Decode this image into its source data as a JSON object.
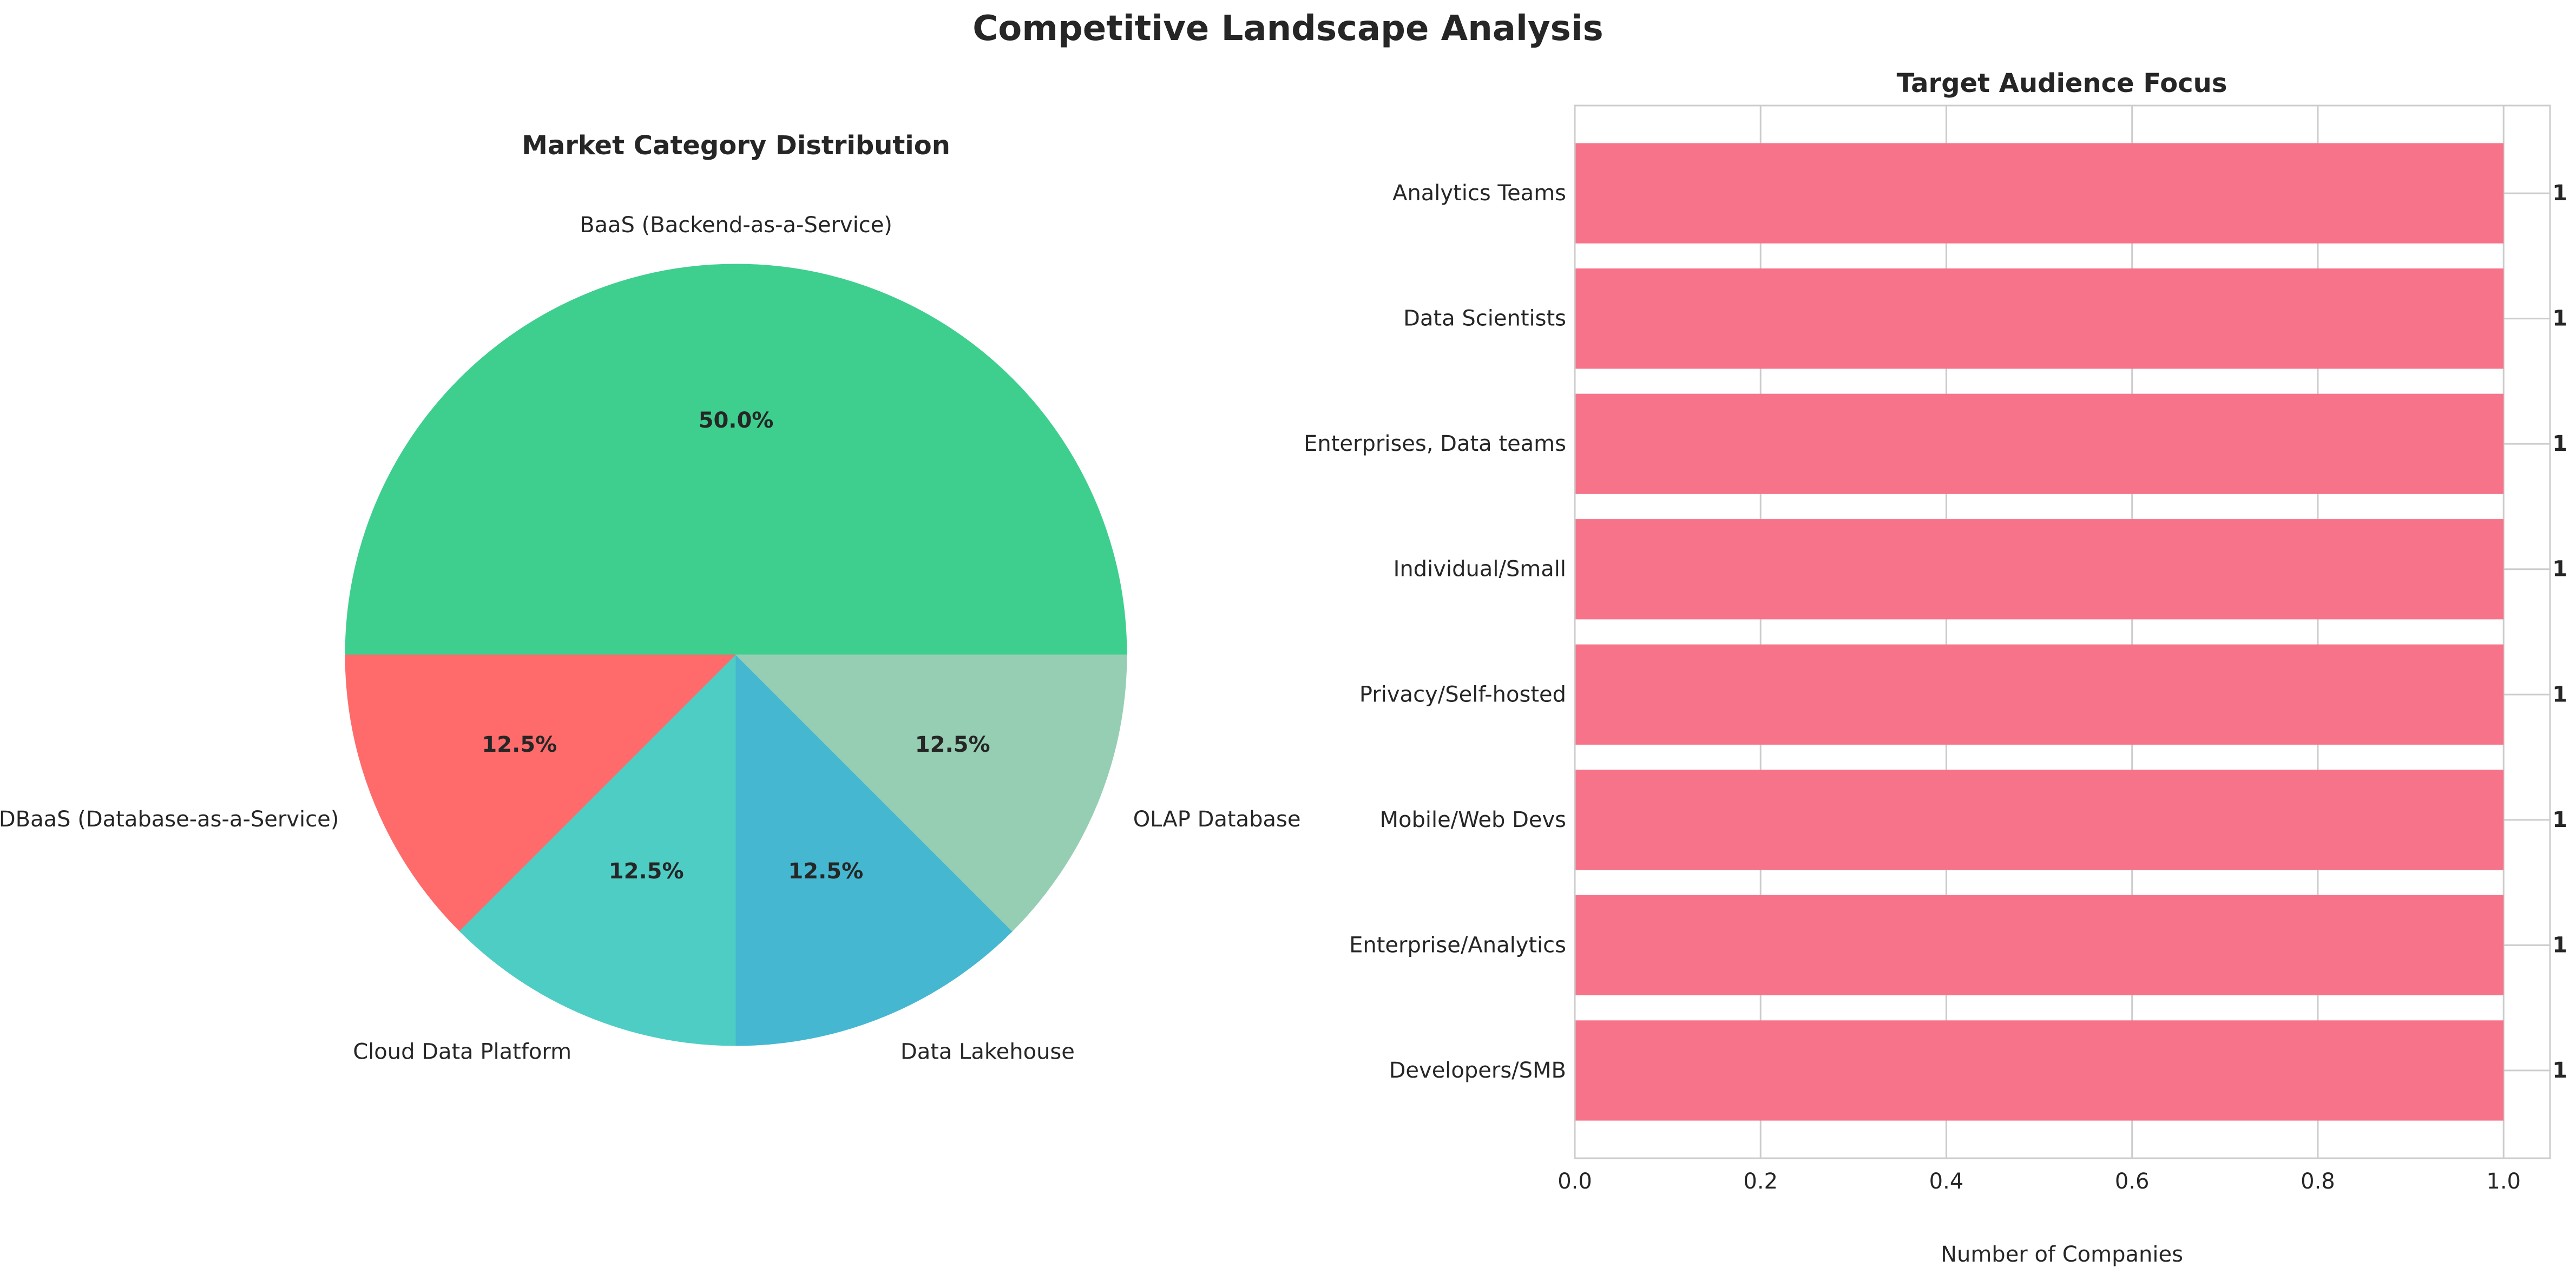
{
  "figure": {
    "title": "Competitive Landscape Analysis"
  },
  "chart_data": [
    {
      "type": "pie",
      "title": "Market Category Distribution",
      "start_angle": 0,
      "direction": "counterclockwise",
      "slices": [
        {
          "label": "BaaS (Backend-as-a-Service)",
          "value": 50.0,
          "pct_label": "50.0%",
          "color": "#3ecf8e"
        },
        {
          "label": "DBaaS (Database-as-a-Service)",
          "value": 12.5,
          "pct_label": "12.5%",
          "color": "#ff6b6b"
        },
        {
          "label": "Cloud Data Platform",
          "value": 12.5,
          "pct_label": "12.5%",
          "color": "#4ecdc4"
        },
        {
          "label": "Data Lakehouse",
          "value": 12.5,
          "pct_label": "12.5%",
          "color": "#45b7d1"
        },
        {
          "label": "OLAP Database",
          "value": 12.5,
          "pct_label": "12.5%",
          "color": "#96ceb4"
        }
      ]
    },
    {
      "type": "bar",
      "orientation": "horizontal",
      "title": "Target Audience Focus",
      "xlabel": "Number of Companies",
      "ylabel": "",
      "xlim": [
        0,
        1.05
      ],
      "xticks": [
        0.0,
        0.2,
        0.4,
        0.6,
        0.8,
        1.0
      ],
      "xtick_labels": [
        "0.0",
        "0.2",
        "0.4",
        "0.6",
        "0.8",
        "1.0"
      ],
      "grid": true,
      "bar_color": "#f7738a",
      "categories": [
        "Analytics Teams",
        "Data Scientists",
        "Enterprises, Data teams",
        "Individual/Small",
        "Privacy/Self-hosted",
        "Mobile/Web Devs",
        "Enterprise/Analytics",
        "Developers/SMB"
      ],
      "values": [
        1,
        1,
        1,
        1,
        1,
        1,
        1,
        1
      ],
      "value_labels": [
        "1",
        "1",
        "1",
        "1",
        "1",
        "1",
        "1",
        "1"
      ]
    }
  ]
}
